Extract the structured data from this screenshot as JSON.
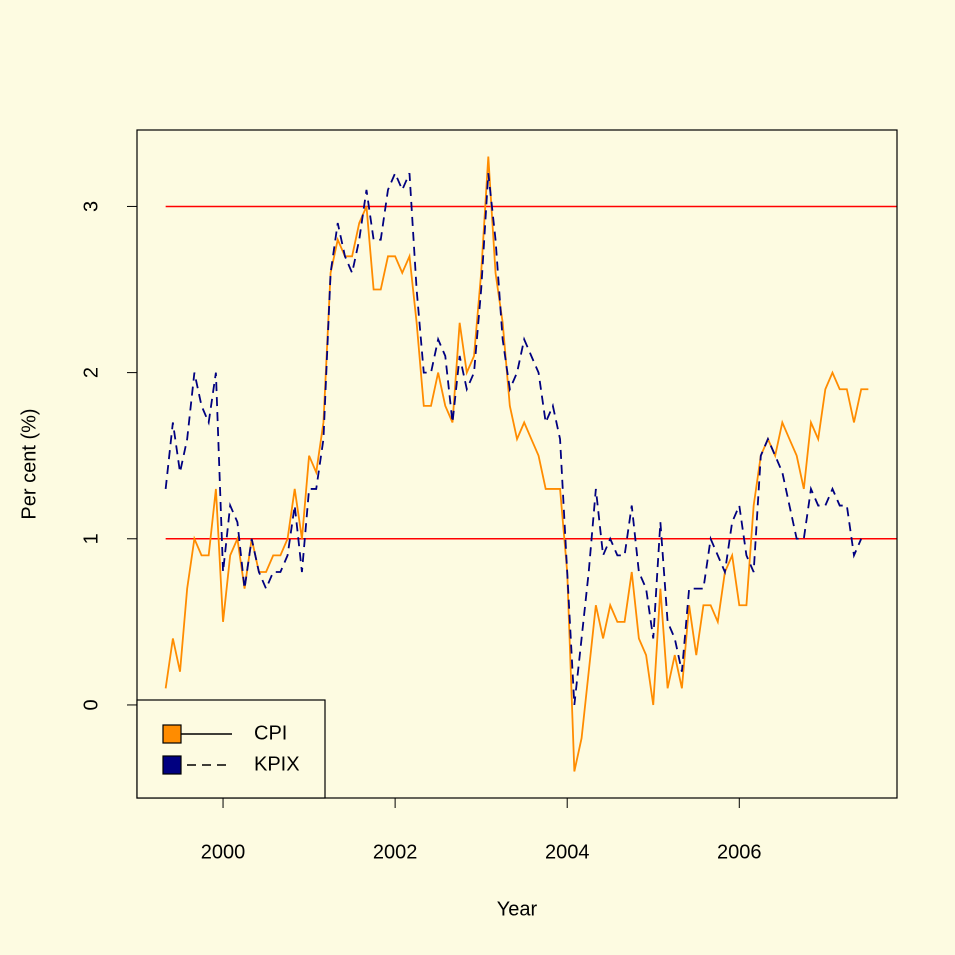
{
  "chart_data": {
    "type": "line",
    "xlabel": "Year",
    "ylabel": "Per cent (%)",
    "x": [
      1999.333,
      1999.417,
      1999.5,
      1999.583,
      1999.667,
      1999.75,
      1999.833,
      1999.917,
      2000.0,
      2000.083,
      2000.167,
      2000.25,
      2000.333,
      2000.417,
      2000.5,
      2000.583,
      2000.667,
      2000.75,
      2000.833,
      2000.917,
      2001.0,
      2001.083,
      2001.167,
      2001.25,
      2001.333,
      2001.417,
      2001.5,
      2001.583,
      2001.667,
      2001.75,
      2001.833,
      2001.917,
      2002.0,
      2002.083,
      2002.167,
      2002.25,
      2002.333,
      2002.417,
      2002.5,
      2002.583,
      2002.667,
      2002.75,
      2002.833,
      2002.917,
      2003.0,
      2003.083,
      2003.167,
      2003.25,
      2003.333,
      2003.417,
      2003.5,
      2003.583,
      2003.667,
      2003.75,
      2003.833,
      2003.917,
      2004.0,
      2004.083,
      2004.167,
      2004.25,
      2004.333,
      2004.417,
      2004.5,
      2004.583,
      2004.667,
      2004.75,
      2004.833,
      2004.917,
      2005.0,
      2005.083,
      2005.167,
      2005.25,
      2005.333,
      2005.417,
      2005.5,
      2005.583,
      2005.667,
      2005.75,
      2005.833,
      2005.917,
      2006.0,
      2006.083,
      2006.167,
      2006.25,
      2006.333,
      2006.417,
      2006.5,
      2006.583,
      2006.667,
      2006.75,
      2006.833,
      2006.917,
      2007.0,
      2007.083,
      2007.167,
      2007.25,
      2007.333,
      2007.417,
      2007.5
    ],
    "series": [
      {
        "name": "CPI",
        "color": "#FF8C00",
        "line_style": "solid",
        "values": [
          0.1,
          0.4,
          0.2,
          0.7,
          1.0,
          0.9,
          0.9,
          1.3,
          0.5,
          0.9,
          1.0,
          0.7,
          1.0,
          0.8,
          0.8,
          0.9,
          0.9,
          1.0,
          1.3,
          1.0,
          1.5,
          1.4,
          1.7,
          2.6,
          2.8,
          2.7,
          2.7,
          2.9,
          3.0,
          2.5,
          2.5,
          2.7,
          2.7,
          2.6,
          2.7,
          2.3,
          1.8,
          1.8,
          2.0,
          1.8,
          1.7,
          2.3,
          2.0,
          2.1,
          2.6,
          3.3,
          2.6,
          2.3,
          1.8,
          1.6,
          1.7,
          1.6,
          1.5,
          1.3,
          1.3,
          1.3,
          0.8,
          -0.4,
          -0.2,
          0.2,
          0.6,
          0.4,
          0.6,
          0.5,
          0.5,
          0.8,
          0.4,
          0.3,
          0.0,
          0.7,
          0.1,
          0.3,
          0.1,
          0.6,
          0.3,
          0.6,
          0.6,
          0.5,
          0.8,
          0.9,
          0.6,
          0.6,
          1.2,
          1.5,
          1.6,
          1.5,
          1.7,
          1.6,
          1.5,
          1.3,
          1.7,
          1.6,
          1.9,
          2.0,
          1.9,
          1.9,
          1.7,
          1.9,
          1.9
        ]
      },
      {
        "name": "KPIX",
        "color": "#000080",
        "line_style": "dashed",
        "values": [
          1.3,
          1.7,
          1.4,
          1.6,
          2.0,
          1.8,
          1.7,
          2.0,
          0.8,
          1.2,
          1.1,
          0.7,
          1.0,
          0.8,
          0.7,
          0.8,
          0.8,
          0.9,
          1.2,
          0.8,
          1.3,
          1.3,
          1.6,
          2.6,
          2.9,
          2.7,
          2.6,
          2.8,
          3.1,
          2.8,
          2.8,
          3.1,
          3.2,
          3.1,
          3.2,
          2.5,
          2.0,
          2.0,
          2.2,
          2.1,
          1.7,
          2.1,
          1.9,
          2.0,
          2.5,
          3.2,
          2.8,
          2.2,
          1.9,
          2.0,
          2.2,
          2.1,
          2.0,
          1.7,
          1.8,
          1.6,
          0.8,
          0.0,
          0.4,
          0.8,
          1.3,
          0.9,
          1.0,
          0.9,
          0.9,
          1.2,
          0.8,
          0.7,
          0.4,
          1.1,
          0.5,
          0.4,
          0.2,
          0.7,
          0.7,
          0.7,
          1.0,
          0.9,
          0.8,
          1.1,
          1.2,
          0.9,
          0.8,
          1.5,
          1.6,
          1.5,
          1.4,
          1.2,
          1.0,
          1.0,
          1.3,
          1.2,
          1.2,
          1.3,
          1.2,
          1.2,
          0.9,
          1.0,
          null
        ]
      }
    ],
    "hlines": {
      "values": [
        1,
        3
      ],
      "color": "#FF0000"
    },
    "xlim": [
      1999.0,
      2007.833
    ],
    "xticks": [
      2000,
      2002,
      2004,
      2006
    ],
    "ylim": [
      -0.56,
      3.46
    ],
    "yticks": [
      0,
      1,
      2,
      3
    ],
    "legend": "bottomleft"
  }
}
